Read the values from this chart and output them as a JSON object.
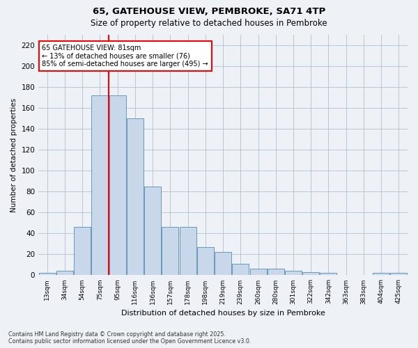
{
  "title_line1": "65, GATEHOUSE VIEW, PEMBROKE, SA71 4TP",
  "title_line2": "Size of property relative to detached houses in Pembroke",
  "xlabel": "Distribution of detached houses by size in Pembroke",
  "ylabel": "Number of detached properties",
  "categories": [
    "13sqm",
    "34sqm",
    "54sqm",
    "75sqm",
    "95sqm",
    "116sqm",
    "136sqm",
    "157sqm",
    "178sqm",
    "198sqm",
    "219sqm",
    "239sqm",
    "260sqm",
    "280sqm",
    "301sqm",
    "322sqm",
    "342sqm",
    "363sqm",
    "383sqm",
    "404sqm",
    "425sqm"
  ],
  "values": [
    2,
    4,
    46,
    172,
    172,
    150,
    85,
    46,
    46,
    27,
    22,
    11,
    6,
    6,
    4,
    3,
    2,
    0,
    0,
    2,
    2
  ],
  "bar_color": "#c8d8ea",
  "bar_edge_color": "#6699bb",
  "vline_x_idx": 3.5,
  "vline_color": "red",
  "annotation_text": "65 GATEHOUSE VIEW: 81sqm\n← 13% of detached houses are smaller (76)\n85% of semi-detached houses are larger (495) →",
  "annotation_box_color": "white",
  "annotation_box_edge_color": "red",
  "ylim": [
    0,
    230
  ],
  "yticks": [
    0,
    20,
    40,
    60,
    80,
    100,
    120,
    140,
    160,
    180,
    200,
    220
  ],
  "footer_text": "Contains HM Land Registry data © Crown copyright and database right 2025.\nContains public sector information licensed under the Open Government Licence v3.0.",
  "background_color": "#eef2f7",
  "plot_background_color": "#eef2f7",
  "grid_color": "#b0c0d0"
}
